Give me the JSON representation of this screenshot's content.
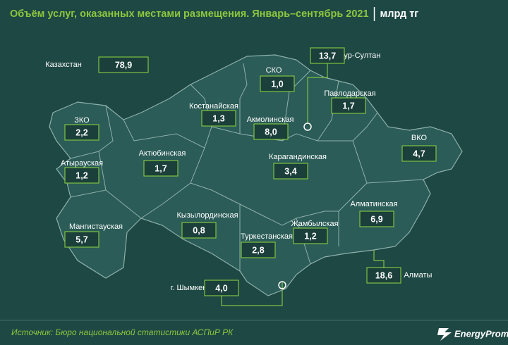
{
  "header": {
    "title": "Объём услуг, оказанных местами размещения. Январь–сентябрь 2021",
    "unit": "млрд тг"
  },
  "total": {
    "label": "Казахстан",
    "value": "78,9"
  },
  "regions": [
    {
      "label": "СКО",
      "value": "1,0"
    },
    {
      "label": "г. Нур-Султан",
      "value": "13,7"
    },
    {
      "label": "Павлодарская",
      "value": "1,7"
    },
    {
      "label": "Костанайская",
      "value": "1,3"
    },
    {
      "label": "Акмолинская",
      "value": "8,0"
    },
    {
      "label": "ЗКО",
      "value": "2,2"
    },
    {
      "label": "ВКО",
      "value": "4,7"
    },
    {
      "label": "Актюбинская",
      "value": "1,7"
    },
    {
      "label": "Карагандинская",
      "value": "3,4"
    },
    {
      "label": "Атырауская",
      "value": "1,2"
    },
    {
      "label": "Алматинская",
      "value": "6,9"
    },
    {
      "label": "Кызылординская",
      "value": "0,8"
    },
    {
      "label": "Жамбылская",
      "value": "1,2"
    },
    {
      "label": "Мангистауская",
      "value": "5,7"
    },
    {
      "label": "Туркестанская",
      "value": "2,8"
    },
    {
      "label": "г. Алматы",
      "value": "18,6"
    },
    {
      "label": "г. Шымкент",
      "value": "4,0"
    }
  ],
  "footer": {
    "source": "Источник: Бюро национальной статистики АСПиР РК",
    "logo": "EnergyProm"
  }
}
